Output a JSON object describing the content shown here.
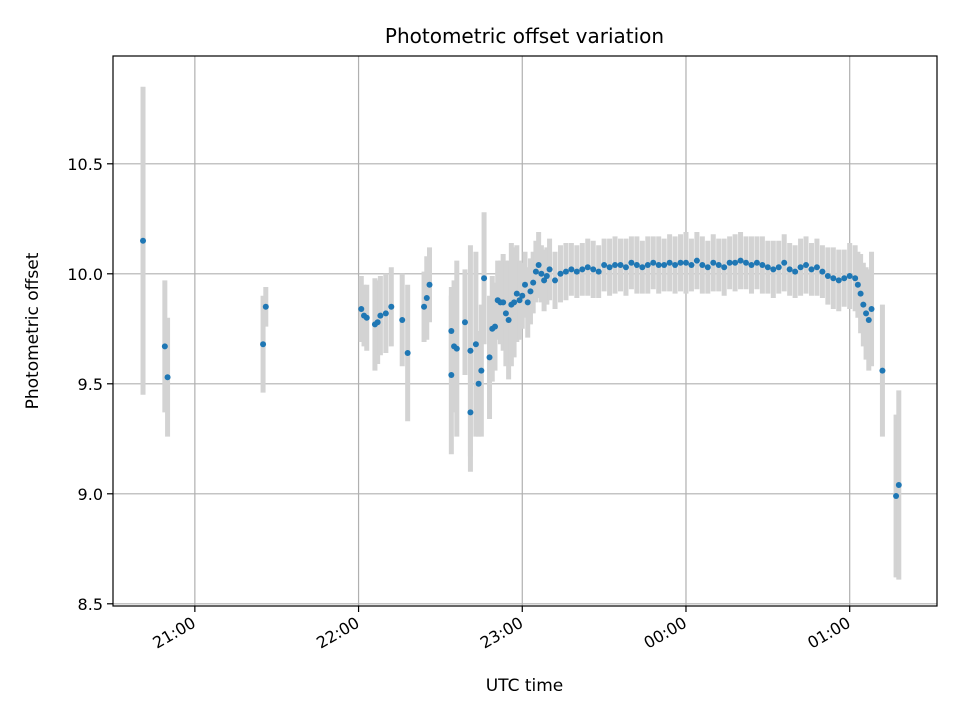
{
  "chart_data": {
    "type": "scatter",
    "title": "Photometric offset variation",
    "xlabel": "UTC time",
    "ylabel": "Photometric offset",
    "xlim": [
      "20:30",
      "01:32"
    ],
    "ylim": [
      8.49,
      10.99
    ],
    "grid": true,
    "x_ticks": [
      "21:00",
      "22:00",
      "23:00",
      "00:00",
      "01:00"
    ],
    "y_ticks": [
      8.5,
      9.0,
      9.5,
      10.0,
      10.5
    ],
    "colors": {
      "points": "#1f77b4",
      "errorbars": "#d3d3d3",
      "grid": "#b0b0b0"
    },
    "series": [
      {
        "x": [
          "20:41",
          "20:49",
          "20:50",
          "21:25",
          "21:26",
          "22:01",
          "22:02",
          "22:03",
          "22:06",
          "22:07",
          "22:08",
          "22:10",
          "22:12",
          "22:16",
          "22:18",
          "22:24",
          "22:25",
          "22:26",
          "22:34",
          "22:34",
          "22:35",
          "22:36",
          "22:39",
          "22:41",
          "22:41",
          "22:43",
          "22:44",
          "22:45",
          "22:46",
          "22:48",
          "22:49",
          "22:50",
          "22:51",
          "22:52",
          "22:53",
          "22:54",
          "22:55",
          "22:56",
          "22:57",
          "22:58",
          "22:59",
          "23:00",
          "23:01",
          "23:02",
          "23:03",
          "23:04",
          "23:05",
          "23:06",
          "23:07",
          "23:08",
          "23:09",
          "23:10",
          "23:12",
          "23:14",
          "23:16",
          "23:18",
          "23:20",
          "23:22",
          "23:24",
          "23:26",
          "23:28",
          "23:30",
          "23:32",
          "23:34",
          "23:36",
          "23:38",
          "23:40",
          "23:42",
          "23:44",
          "23:46",
          "23:48",
          "23:50",
          "23:52",
          "23:54",
          "23:56",
          "23:58",
          "00:00",
          "00:02",
          "00:04",
          "00:06",
          "00:08",
          "00:10",
          "00:12",
          "00:14",
          "00:16",
          "00:18",
          "00:20",
          "00:22",
          "00:24",
          "00:26",
          "00:28",
          "00:30",
          "00:32",
          "00:34",
          "00:36",
          "00:38",
          "00:40",
          "00:42",
          "00:44",
          "00:46",
          "00:48",
          "00:50",
          "00:52",
          "00:54",
          "00:56",
          "00:58",
          "01:00",
          "01:02",
          "01:03",
          "01:04",
          "01:05",
          "01:06",
          "01:07",
          "01:08",
          "01:12",
          "01:17",
          "01:18"
        ],
        "y": [
          10.15,
          9.67,
          9.53,
          9.68,
          9.85,
          9.84,
          9.81,
          9.8,
          9.77,
          9.78,
          9.81,
          9.82,
          9.85,
          9.79,
          9.64,
          9.85,
          9.89,
          9.95,
          9.74,
          9.54,
          9.67,
          9.66,
          9.78,
          9.37,
          9.65,
          9.68,
          9.5,
          9.56,
          9.98,
          9.62,
          9.75,
          9.76,
          9.88,
          9.87,
          9.87,
          9.82,
          9.79,
          9.86,
          9.87,
          9.91,
          9.88,
          9.9,
          9.95,
          9.87,
          9.92,
          9.96,
          10.01,
          10.04,
          10.0,
          9.97,
          9.99,
          10.02,
          9.97,
          10.0,
          10.01,
          10.02,
          10.01,
          10.02,
          10.03,
          10.02,
          10.01,
          10.04,
          10.03,
          10.04,
          10.04,
          10.03,
          10.05,
          10.04,
          10.03,
          10.04,
          10.05,
          10.04,
          10.04,
          10.05,
          10.04,
          10.05,
          10.05,
          10.04,
          10.06,
          10.04,
          10.03,
          10.05,
          10.04,
          10.03,
          10.05,
          10.05,
          10.06,
          10.05,
          10.04,
          10.05,
          10.04,
          10.03,
          10.02,
          10.03,
          10.05,
          10.02,
          10.01,
          10.03,
          10.04,
          10.02,
          10.03,
          10.01,
          9.99,
          9.98,
          9.97,
          9.98,
          9.99,
          9.98,
          9.95,
          9.91,
          9.86,
          9.82,
          9.79,
          9.84,
          9.56,
          8.99,
          9.04
        ],
        "yerr": [
          0.7,
          0.3,
          0.27,
          0.22,
          0.09,
          0.15,
          0.14,
          0.15,
          0.21,
          0.19,
          0.18,
          0.18,
          0.18,
          0.21,
          0.31,
          0.16,
          0.19,
          0.17,
          0.2,
          0.36,
          0.3,
          0.4,
          0.24,
          0.27,
          0.48,
          0.42,
          0.24,
          0.3,
          0.3,
          0.28,
          0.24,
          0.2,
          0.18,
          0.19,
          0.22,
          0.24,
          0.27,
          0.28,
          0.25,
          0.22,
          0.18,
          0.15,
          0.15,
          0.16,
          0.15,
          0.14,
          0.14,
          0.15,
          0.13,
          0.14,
          0.13,
          0.14,
          0.13,
          0.13,
          0.13,
          0.12,
          0.12,
          0.12,
          0.13,
          0.13,
          0.12,
          0.12,
          0.13,
          0.13,
          0.12,
          0.13,
          0.12,
          0.13,
          0.12,
          0.13,
          0.12,
          0.13,
          0.12,
          0.13,
          0.13,
          0.13,
          0.14,
          0.12,
          0.13,
          0.13,
          0.12,
          0.13,
          0.12,
          0.13,
          0.12,
          0.13,
          0.13,
          0.12,
          0.13,
          0.12,
          0.13,
          0.12,
          0.13,
          0.12,
          0.13,
          0.12,
          0.12,
          0.13,
          0.13,
          0.12,
          0.13,
          0.12,
          0.13,
          0.14,
          0.14,
          0.13,
          0.15,
          0.15,
          0.15,
          0.18,
          0.19,
          0.21,
          0.23,
          0.26,
          0.3,
          0.37,
          0.43
        ]
      }
    ]
  }
}
